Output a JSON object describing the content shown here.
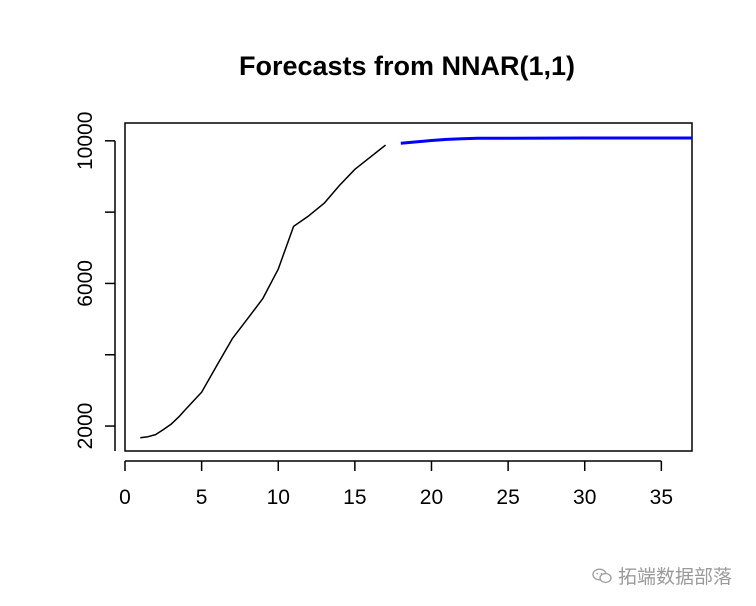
{
  "chart_data": {
    "type": "line",
    "title": "Forecasts from NNAR(1,1)",
    "xlabel": "",
    "ylabel": "",
    "xlim": [
      0,
      37
    ],
    "ylim": [
      1300,
      10500
    ],
    "x_ticks": [
      0,
      5,
      10,
      15,
      20,
      25,
      30,
      35
    ],
    "y_ticks": [
      2000,
      6000,
      10000
    ],
    "grid": false,
    "series": [
      {
        "color": "#000000",
        "x": [
          1,
          1.5,
          2,
          2.5,
          3,
          3.5,
          4,
          5,
          6,
          7,
          8,
          9,
          10,
          11,
          12,
          13,
          14,
          15,
          16,
          17
        ],
        "y": [
          1670,
          1700,
          1760,
          1900,
          2050,
          2250,
          2490,
          2950,
          3700,
          4450,
          5010,
          5580,
          6400,
          7600,
          7900,
          8250,
          8750,
          9200,
          9540,
          9880
        ]
      },
      {
        "color": "#0000ff",
        "x": [
          18,
          19,
          20,
          21,
          22,
          23,
          25,
          30,
          35,
          37
        ],
        "y": [
          9930,
          9970,
          10010,
          10040,
          10060,
          10070,
          10075,
          10080,
          10080,
          10080
        ]
      }
    ]
  },
  "watermark": {
    "icon": "wechat-icon",
    "text": "拓端数据部落"
  }
}
